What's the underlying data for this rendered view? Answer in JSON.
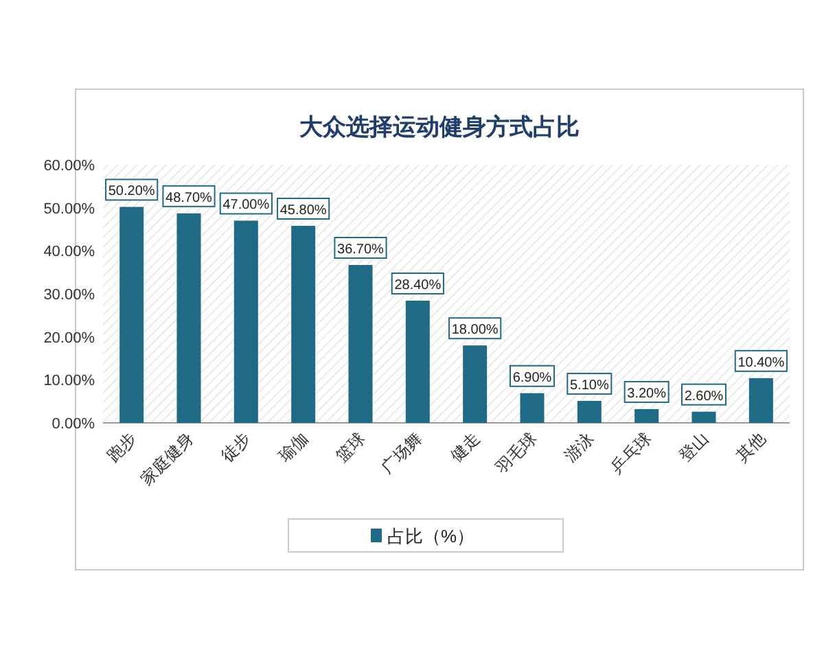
{
  "chart_data": {
    "type": "bar",
    "title": "大众选择运动健身方式占比",
    "categories": [
      "跑步",
      "家庭健身",
      "徒步",
      "瑜伽",
      "篮球",
      "广场舞",
      "健走",
      "羽毛球",
      "游泳",
      "乒乓球",
      "登山",
      "其他"
    ],
    "series": [
      {
        "name": "占比（%）",
        "color": "#1f6a87",
        "values": [
          50.2,
          48.7,
          47.0,
          45.8,
          36.7,
          28.4,
          18.0,
          6.9,
          5.1,
          3.2,
          2.6,
          10.4
        ],
        "value_labels": [
          "50.20%",
          "48.70%",
          "47.00%",
          "45.80%",
          "36.70%",
          "28.40%",
          "18.00%",
          "6.90%",
          "5.10%",
          "3.20%",
          "2.60%",
          "10.40%"
        ]
      }
    ],
    "ylim": [
      0,
      60
    ],
    "yticks": [
      {
        "value": 0,
        "label": "0.00%"
      },
      {
        "value": 10,
        "label": "10.00%"
      },
      {
        "value": 20,
        "label": "20.00%"
      },
      {
        "value": 30,
        "label": "30.00%"
      },
      {
        "value": 40,
        "label": "40.00%"
      },
      {
        "value": 50,
        "label": "50.00%"
      },
      {
        "value": 60,
        "label": "60.00%"
      }
    ],
    "legend": "bottom"
  }
}
